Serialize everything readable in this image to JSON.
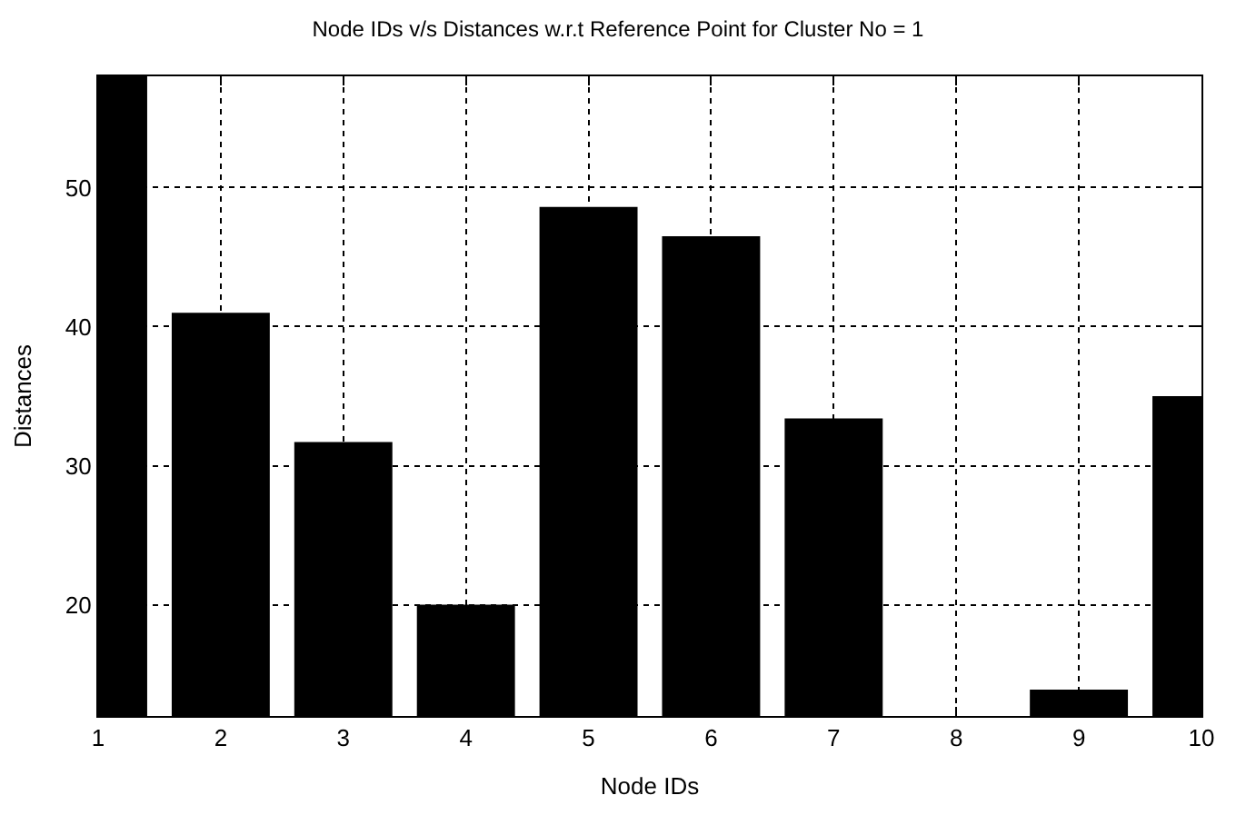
{
  "chart_data": {
    "type": "bar",
    "title": "Node IDs v/s Distances w.r.t Reference Point for Cluster No = 1",
    "xlabel": "Node IDs",
    "ylabel": "Distances",
    "x": [
      1,
      2,
      3,
      4,
      5,
      6,
      7,
      8,
      9,
      10
    ],
    "values": [
      58,
      41,
      31.7,
      20,
      48.6,
      46.5,
      33.4,
      12,
      13.9,
      35
    ],
    "color": "#000000",
    "xlim": [
      1,
      10
    ],
    "xticks": [
      1,
      2,
      3,
      4,
      5,
      6,
      7,
      8,
      9,
      10
    ],
    "ylim": [
      12,
      58
    ],
    "yticks": [
      20,
      30,
      40,
      50
    ],
    "grid": true
  }
}
